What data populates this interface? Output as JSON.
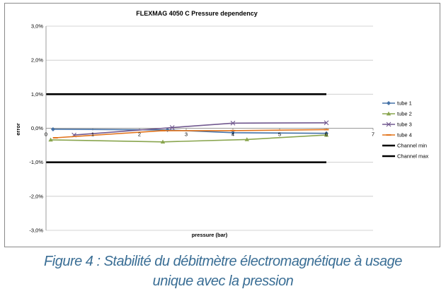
{
  "caption": {
    "line1": "Figure 4 : Stabilité du débitmètre électromagnétique à usage",
    "line2": "unique avec la pression"
  },
  "chart_data": {
    "type": "line",
    "title": "FLEXMAG 4050 C Pressure dependency",
    "xlabel": "pressure (bar)",
    "ylabel": "error",
    "xlim": [
      0,
      7
    ],
    "ylim": [
      -3.0,
      3.0
    ],
    "xticks": [
      "0",
      "1",
      "2",
      "3",
      "4",
      "5",
      "6",
      "7"
    ],
    "xtick_values": [
      0,
      1,
      2,
      3,
      4,
      5,
      6,
      7
    ],
    "yticks": [
      "3,0%",
      "2,0%",
      "1,0%",
      "0,0%",
      "-1,0%",
      "-2,0%",
      "-3,0%"
    ],
    "ytick_values": [
      3,
      2,
      1,
      0,
      -1,
      -2,
      -3
    ],
    "grid": "horizontal",
    "legend_position": "right",
    "series": [
      {
        "name": "tube 1",
        "color": "#4572a7",
        "marker": "diamond",
        "x": [
          0.15,
          2.6,
          4.0,
          6.0
        ],
        "y": [
          -0.03,
          -0.05,
          -0.13,
          -0.15
        ]
      },
      {
        "name": "tube 2",
        "color": "#89a54e",
        "marker": "triangle",
        "x": [
          0.1,
          2.5,
          4.3,
          6.0
        ],
        "y": [
          -0.34,
          -0.4,
          -0.33,
          -0.2
        ]
      },
      {
        "name": "tube 3",
        "color": "#71588f",
        "marker": "x",
        "x": [
          0.6,
          2.7,
          4.0,
          6.0
        ],
        "y": [
          -0.2,
          0.02,
          0.15,
          0.16
        ]
      },
      {
        "name": "tube 4",
        "color": "#e2731a",
        "marker": "dash",
        "x": [
          0.2,
          2.5,
          4.0,
          6.0
        ],
        "y": [
          -0.28,
          -0.07,
          -0.07,
          -0.04
        ]
      },
      {
        "name": "Channel min",
        "color": "#000000",
        "marker": "none",
        "x": [
          0,
          6
        ],
        "y": [
          1.0,
          1.0
        ]
      },
      {
        "name": "Channel max",
        "color": "#000000",
        "marker": "none",
        "x": [
          0,
          6
        ],
        "y": [
          -1.0,
          -1.0
        ]
      }
    ]
  }
}
